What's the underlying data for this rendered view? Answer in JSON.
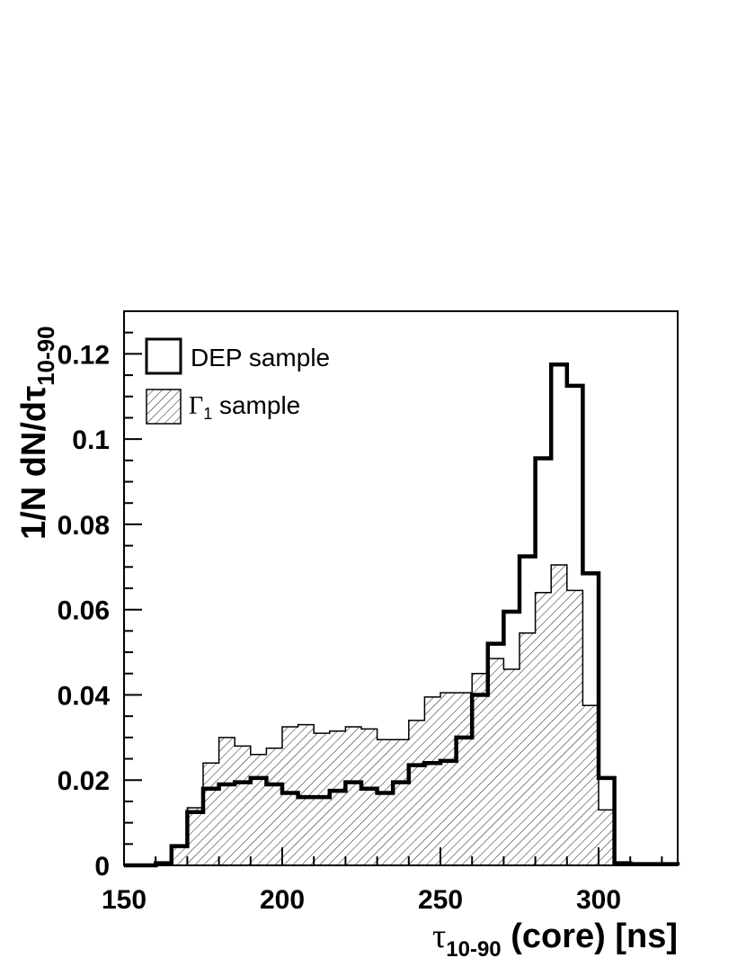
{
  "chart_data": {
    "type": "histogram",
    "xlabel_symbol": "τ",
    "xlabel_subscript": "10-90",
    "xlabel_rest": " (core) [ns]",
    "ylabel_main": "1/N dN/dτ",
    "ylabel_subscript": "10-90",
    "xlim": [
      150,
      325
    ],
    "ylim": [
      0,
      0.13
    ],
    "x_ticks": [
      150,
      200,
      250,
      300
    ],
    "x_tick_labels": [
      "150",
      "200",
      "250",
      "300"
    ],
    "y_ticks": [
      0,
      0.02,
      0.04,
      0.06,
      0.08,
      0.1,
      0.12
    ],
    "y_tick_labels": [
      "0",
      "0.02",
      "0.04",
      "0.06",
      "0.08",
      "0.1",
      "0.12"
    ],
    "bin_edges": [
      150,
      155,
      160,
      165,
      170,
      175,
      180,
      185,
      190,
      195,
      200,
      205,
      210,
      215,
      220,
      225,
      230,
      235,
      240,
      245,
      250,
      255,
      260,
      265,
      270,
      275,
      280,
      285,
      290,
      295,
      300,
      305,
      310,
      315,
      320,
      325
    ],
    "legend_position": "top-left",
    "series": [
      {
        "name": "DEP sample",
        "style": "outline-thick",
        "values": [
          0.0,
          0.0,
          0.0005,
          0.0045,
          0.0125,
          0.018,
          0.019,
          0.0195,
          0.0205,
          0.019,
          0.017,
          0.016,
          0.016,
          0.0175,
          0.0195,
          0.018,
          0.017,
          0.0195,
          0.0235,
          0.024,
          0.0245,
          0.03,
          0.04,
          0.052,
          0.0595,
          0.0725,
          0.0955,
          0.1175,
          0.1125,
          0.0685,
          0.0205,
          0.0005,
          0.0003,
          0.0003,
          0.0003
        ]
      },
      {
        "name_prefix": "Γ",
        "name_subscript": "1",
        "name_suffix": " sample",
        "style": "hatched",
        "values": [
          0.0,
          0.0,
          0.0005,
          0.0045,
          0.0135,
          0.024,
          0.03,
          0.028,
          0.026,
          0.0275,
          0.0325,
          0.033,
          0.031,
          0.0315,
          0.0325,
          0.032,
          0.0295,
          0.0295,
          0.034,
          0.0395,
          0.0405,
          0.0405,
          0.045,
          0.0485,
          0.046,
          0.0545,
          0.064,
          0.0705,
          0.0645,
          0.0375,
          0.013,
          0.0,
          0.0,
          0.0,
          0.0
        ]
      }
    ]
  }
}
